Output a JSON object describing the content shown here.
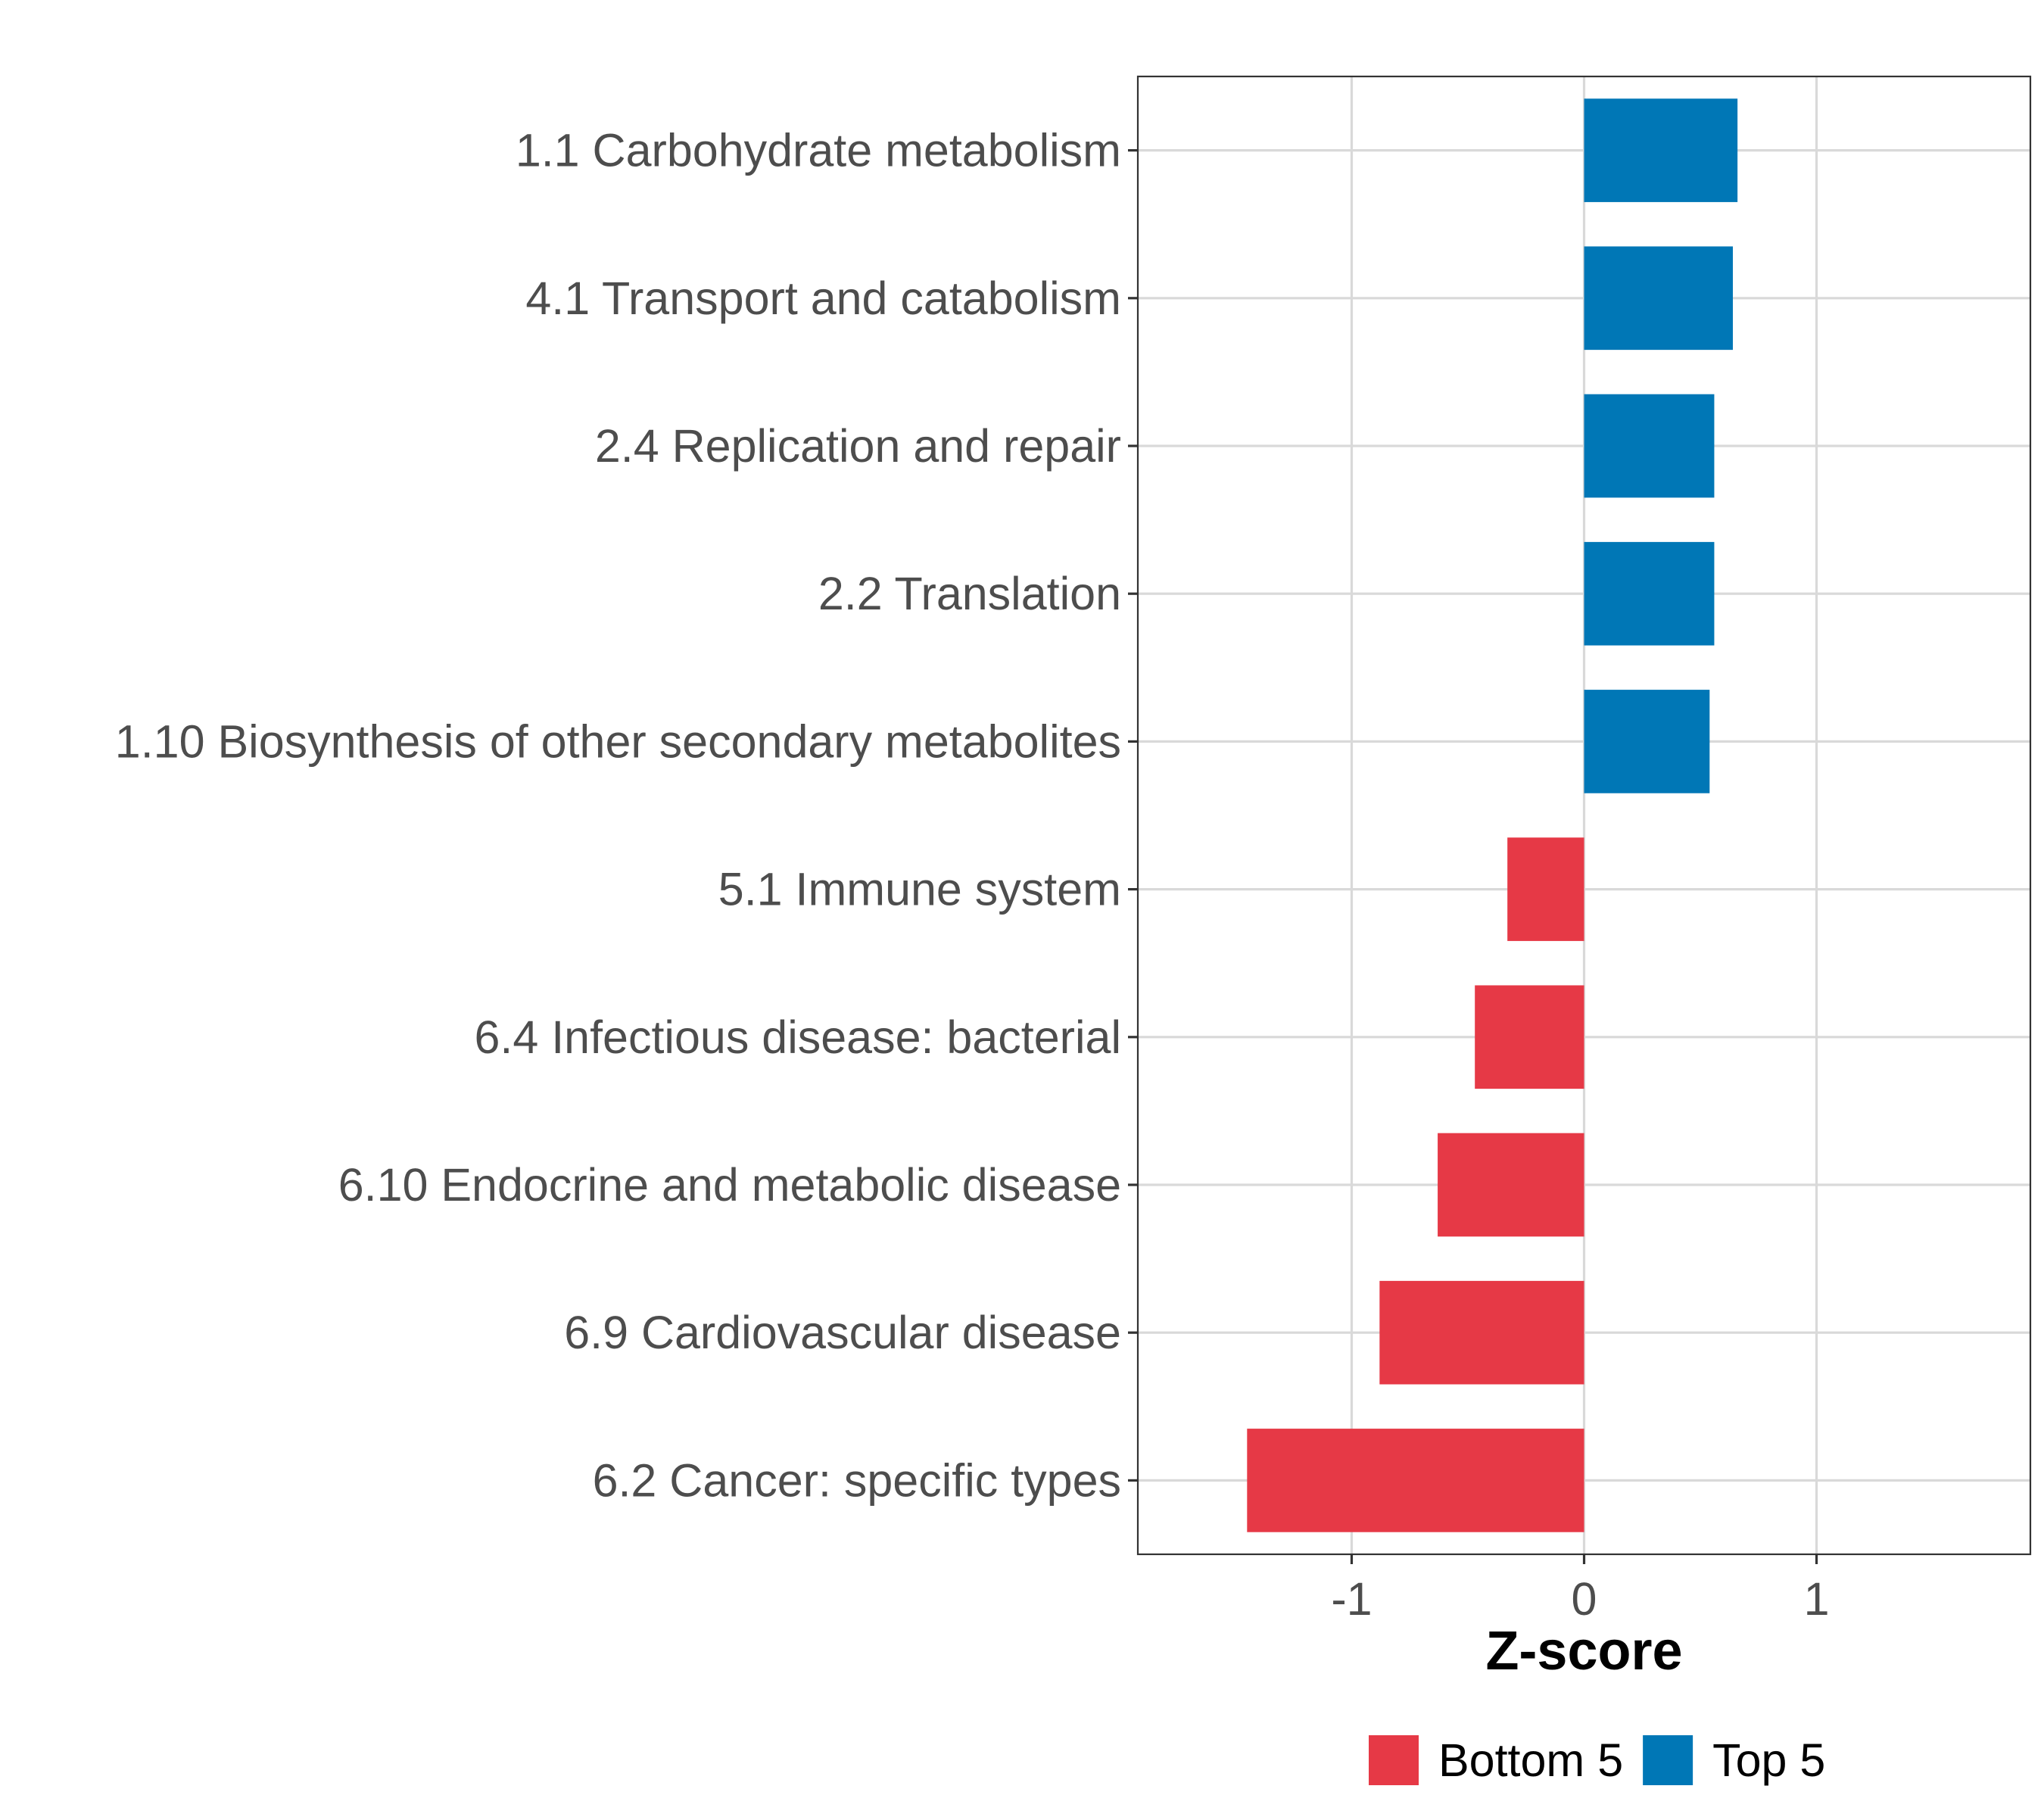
{
  "chart_data": {
    "type": "bar",
    "orientation": "horizontal",
    "categories": [
      "1.1 Carbohydrate metabolism",
      "4.1 Transport and catabolism",
      "2.4 Replication and repair",
      "2.2 Translation",
      "1.10 Biosynthesis of other secondary metabolites",
      "5.1 Immune system",
      "6.4 Infectious disease: bacterial",
      "6.10 Endocrine and metabolic disease",
      "6.9 Cardiovascular disease",
      "6.2 Cancer: specific types"
    ],
    "values": [
      0.66,
      0.64,
      0.56,
      0.56,
      0.54,
      -0.33,
      -0.47,
      -0.63,
      -0.88,
      -1.45
    ],
    "groups": [
      "Top 5",
      "Top 5",
      "Top 5",
      "Top 5",
      "Top 5",
      "Bottom 5",
      "Bottom 5",
      "Bottom 5",
      "Bottom 5",
      "Bottom 5"
    ],
    "series": [
      {
        "name": "Bottom 5",
        "color": "#E63946"
      },
      {
        "name": "Top 5",
        "color": "#0077B6"
      }
    ],
    "xlabel": "Z-score",
    "ylabel": "",
    "xlim": [
      -1.92,
      1.92
    ],
    "xticks": [
      -1,
      0,
      1
    ],
    "xtick_labels": [
      "-1",
      "0",
      "1"
    ],
    "grid": true,
    "legend_position": "bottom"
  }
}
